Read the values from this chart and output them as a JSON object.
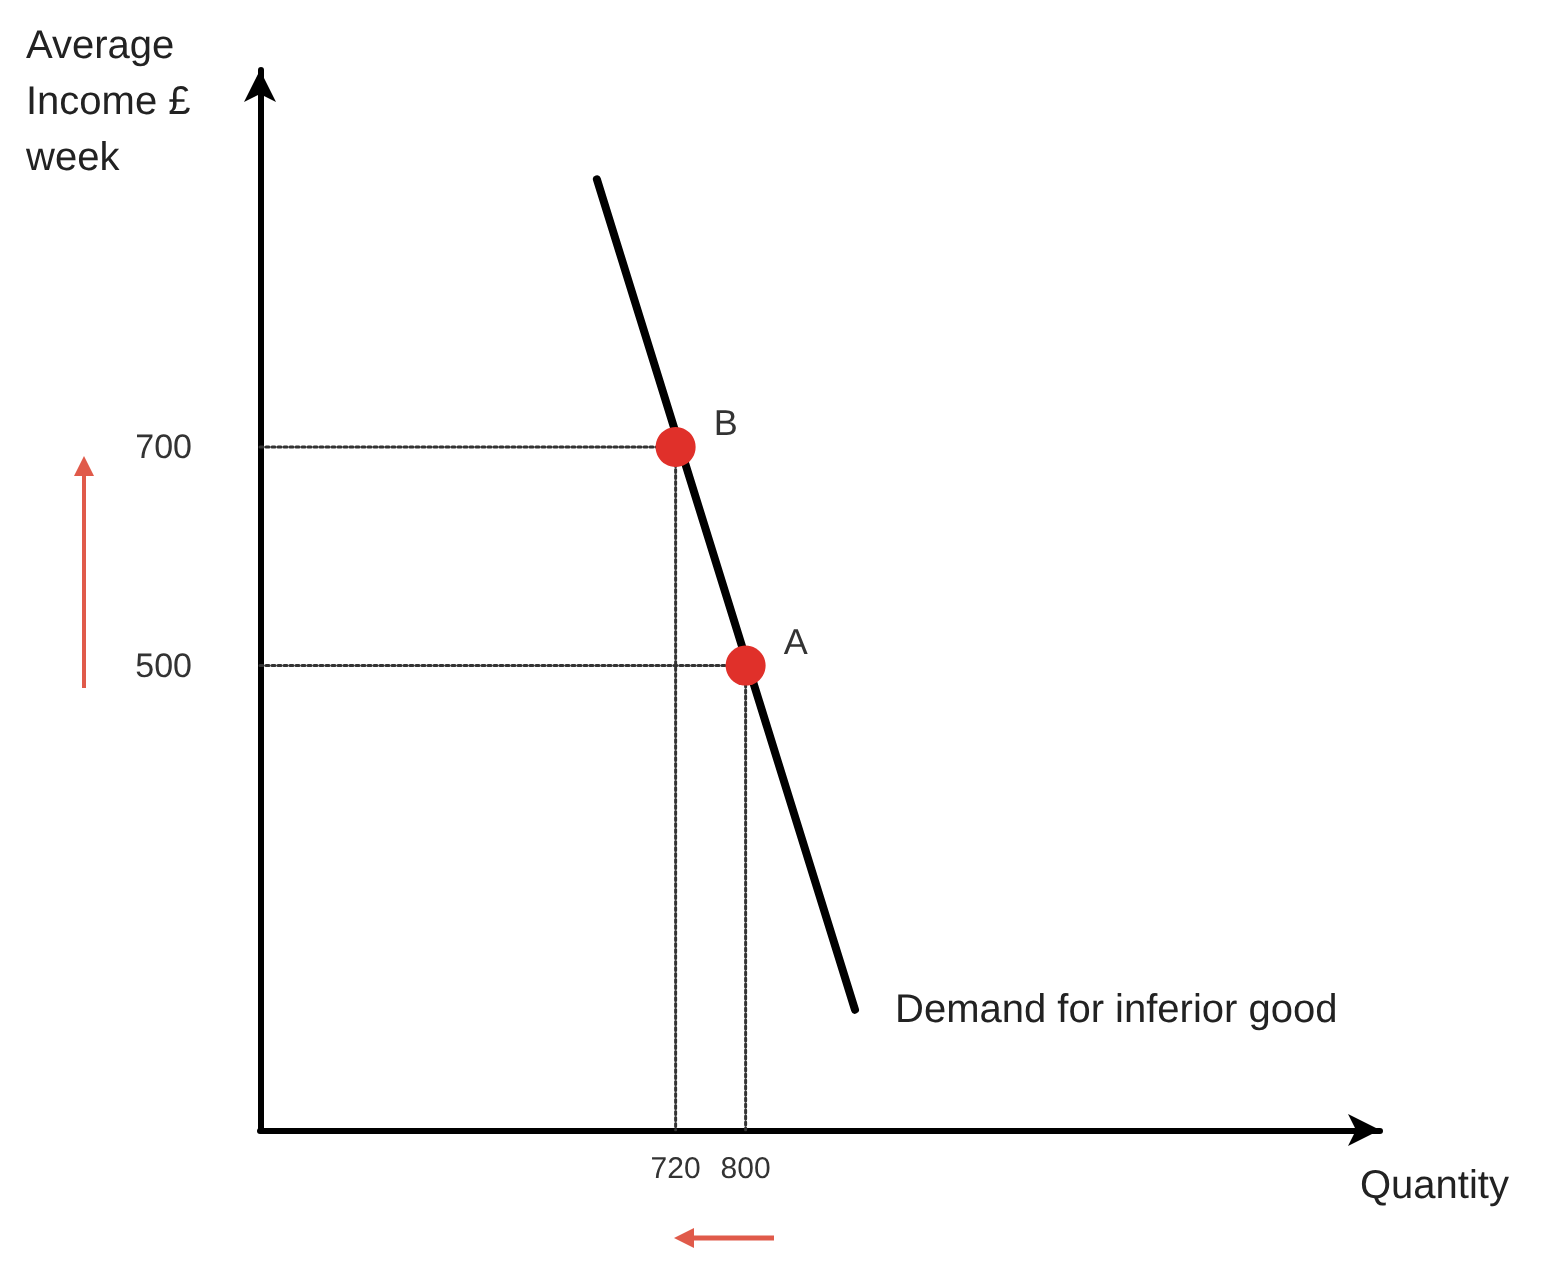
{
  "chart_data": {
    "type": "line",
    "xlabel": "Quantity",
    "ylabel": "Average Income £ week",
    "series": [
      {
        "name": "Demand for inferior good",
        "color": "#000000",
        "x": [
          630,
          925
        ],
        "values": [
          945,
          185
        ],
        "marker": "none",
        "line_style": "solid"
      },
      {
        "color": "#333333",
        "x": [
          245,
          720,
          720
        ],
        "values": [
          700,
          700,
          75
        ],
        "marker": "none",
        "line_style": "dotted"
      },
      {
        "color": "#333333",
        "x": [
          245,
          800,
          800
        ],
        "values": [
          500,
          500,
          75
        ],
        "marker": "none",
        "line_style": "dotted"
      },
      {
        "type": "scatter",
        "color": "#e0302a",
        "x": [
          720,
          800
        ],
        "values": [
          700,
          500
        ],
        "value_labels": [
          "B",
          "A"
        ],
        "marker": "circle"
      }
    ],
    "xlim": [
      245,
      1525
    ],
    "ylim": [
      75,
      1045
    ],
    "xticks": [
      720,
      800
    ],
    "yticks": [
      500,
      700
    ],
    "grid": false,
    "legend": false
  }
}
